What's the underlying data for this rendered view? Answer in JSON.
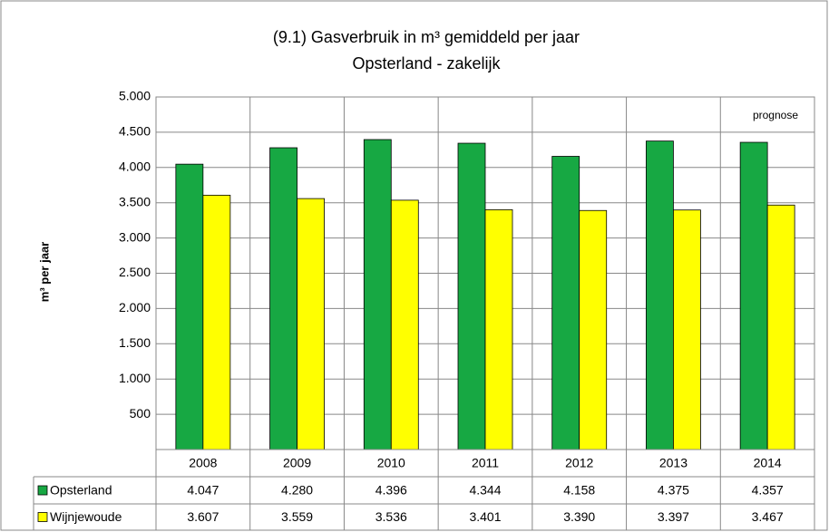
{
  "chart_data": {
    "type": "bar",
    "title": "(9.1) Gasverbruik in m³ gemiddeld per jaar",
    "subtitle": "Opsterland - zakelijk",
    "y_label": "m³ per jaar",
    "annotation": "prognose",
    "categories": [
      "2008",
      "2009",
      "2010",
      "2011",
      "2012",
      "2013",
      "2014"
    ],
    "series": [
      {
        "name": "Opsterland",
        "color": "#17a843",
        "values": [
          4047,
          4280,
          4396,
          4344,
          4158,
          4375,
          4357
        ],
        "value_labels": [
          "4.047",
          "4.280",
          "4.396",
          "4.344",
          "4.158",
          "4.375",
          "4.357"
        ]
      },
      {
        "name": "Wijnjewoude",
        "color": "#ffff00",
        "values": [
          3607,
          3559,
          3536,
          3401,
          3390,
          3397,
          3467
        ],
        "value_labels": [
          "3.607",
          "3.559",
          "3.536",
          "3.401",
          "3.390",
          "3.397",
          "3.467"
        ]
      }
    ],
    "ylim": [
      0,
      5000
    ],
    "yticks": [
      500,
      {
        "value": 1000,
        "label": "1.000"
      },
      {
        "value": 1500,
        "label": "1.500"
      },
      {
        "value": 2000,
        "label": "2.000"
      },
      {
        "value": 2500,
        "label": "2.500"
      },
      {
        "value": 3000,
        "label": "3.000"
      },
      {
        "value": 3500,
        "label": "3.500"
      },
      {
        "value": 4000,
        "label": "4.000"
      },
      {
        "value": 4500,
        "label": "4.500"
      },
      {
        "value": 5000,
        "label": "5.000"
      }
    ],
    "grid": true
  }
}
